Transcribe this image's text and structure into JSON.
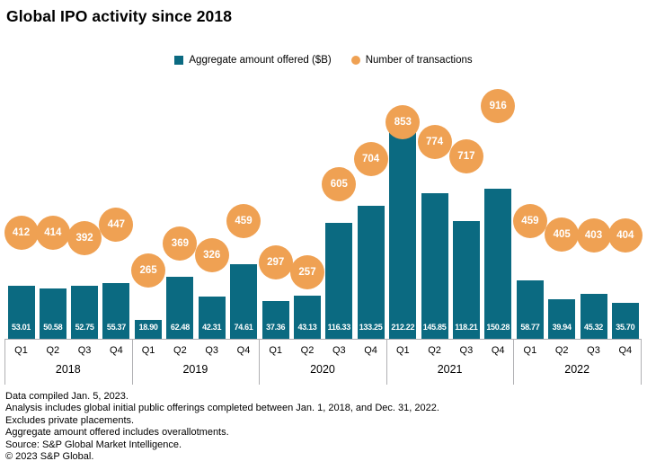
{
  "title": "Global IPO activity since 2018",
  "legend": {
    "bars_label": "Aggregate amount offered ($B)",
    "bubbles_label": "Number of transactions"
  },
  "colors": {
    "bar": "#0b6a81",
    "bubble": "#efa153",
    "axis": "#b0b0b3",
    "value_text": "#ffffff",
    "text": "#000000"
  },
  "chart_data": {
    "type": "bar",
    "title": "Global IPO activity since 2018",
    "years": [
      "2018",
      "2019",
      "2020",
      "2021",
      "2022"
    ],
    "quarters": [
      "Q1",
      "Q2",
      "Q3",
      "Q4"
    ],
    "series": [
      {
        "name": "Aggregate amount offered ($B)",
        "type": "bar",
        "values": [
          53.01,
          50.58,
          52.75,
          55.37,
          18.9,
          62.48,
          42.31,
          74.61,
          37.36,
          43.13,
          116.33,
          133.25,
          212.22,
          145.85,
          118.21,
          150.28,
          58.77,
          39.94,
          45.32,
          35.7
        ]
      },
      {
        "name": "Number of transactions",
        "type": "bubble",
        "values": [
          412,
          414,
          392,
          447,
          265,
          369,
          326,
          459,
          297,
          257,
          605,
          704,
          853,
          774,
          717,
          916,
          459,
          405,
          403,
          404
        ]
      }
    ],
    "bar_value_decimals": 2,
    "legend_position": "top",
    "gridlines": false,
    "notes": "bars labeled inside base with $B amounts; orange bubbles above bars show transaction counts"
  },
  "footnotes": [
    "Data compiled Jan. 5, 2023.",
    "Analysis includes global initial public offerings completed between Jan. 1, 2018, and Dec. 31, 2022.",
    "Excludes private placements.",
    "Aggregate amount offered includes overallotments.",
    "Source: S&P Global Market Intelligence.",
    "© 2023 S&P Global."
  ]
}
